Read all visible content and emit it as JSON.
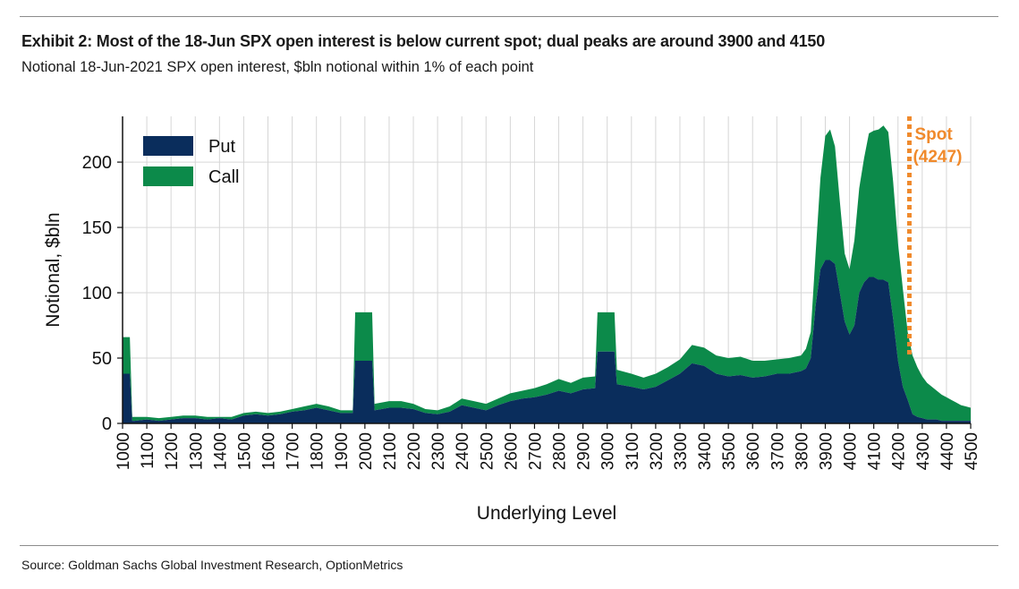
{
  "title": "Exhibit 2: Most of the 18-Jun SPX open interest is below current spot; dual peaks are around 3900 and 4150",
  "subtitle": "Notional 18-Jun-2021 SPX open interest, $bln notional within 1% of each point",
  "source": "Source: Goldman Sachs Global Investment Research, OptionMetrics",
  "chart_data": {
    "type": "area",
    "stacked": true,
    "xlabel": "Underlying Level",
    "ylabel": "Notional, $bln",
    "xlim": [
      1000,
      4500
    ],
    "ylim": [
      0,
      235
    ],
    "yticks": [
      0,
      50,
      100,
      150,
      200
    ],
    "xticks": [
      1000,
      1100,
      1200,
      1300,
      1400,
      1500,
      1600,
      1700,
      1800,
      1900,
      2000,
      2100,
      2200,
      2300,
      2400,
      2500,
      2600,
      2700,
      2800,
      2900,
      3000,
      3100,
      3200,
      3300,
      3400,
      3500,
      3600,
      3700,
      3800,
      3900,
      4000,
      4100,
      4200,
      4300,
      4400,
      4500
    ],
    "xtick_labels": [
      "1000",
      "1100",
      "1200",
      "1300",
      "1400",
      "1500",
      "1600",
      "1700",
      "1800",
      "1900",
      "2000",
      "2100",
      "2200",
      "2300",
      "2400",
      "2500",
      "2600",
      "2700",
      "2800",
      "2900",
      "3000",
      "3100",
      "3200",
      "3300",
      "3400",
      "3500",
      "3600",
      "3700",
      "3800",
      "3900",
      "4000",
      "4100",
      "4200",
      "4300",
      "4400",
      "4500"
    ],
    "grid": true,
    "legend_position": "top-left",
    "x": [
      1000,
      1010,
      1020,
      1030,
      1040,
      1050,
      1100,
      1150,
      1200,
      1250,
      1300,
      1350,
      1400,
      1450,
      1500,
      1550,
      1600,
      1650,
      1700,
      1750,
      1800,
      1850,
      1900,
      1950,
      1960,
      1970,
      2030,
      2040,
      2100,
      2150,
      2200,
      2250,
      2300,
      2350,
      2400,
      2450,
      2500,
      2550,
      2600,
      2650,
      2700,
      2750,
      2800,
      2850,
      2900,
      2950,
      2960,
      2970,
      3030,
      3040,
      3100,
      3150,
      3200,
      3250,
      3300,
      3350,
      3400,
      3450,
      3500,
      3550,
      3600,
      3650,
      3700,
      3750,
      3800,
      3820,
      3840,
      3860,
      3880,
      3900,
      3920,
      3940,
      3960,
      3980,
      4000,
      4020,
      4040,
      4060,
      4080,
      4100,
      4120,
      4140,
      4160,
      4180,
      4200,
      4220,
      4240,
      4260,
      4280,
      4300,
      4320,
      4340,
      4360,
      4380,
      4400,
      4420,
      4440,
      4460,
      4480,
      4500
    ],
    "series": [
      {
        "name": "Put",
        "color": "#0a2d5c",
        "values": [
          38,
          38,
          38,
          38,
          2,
          2,
          3,
          2,
          3,
          4,
          4,
          3,
          4,
          3,
          6,
          7,
          6,
          7,
          9,
          10,
          12,
          10,
          8,
          8,
          48,
          48,
          48,
          10,
          12,
          12,
          11,
          8,
          7,
          9,
          14,
          12,
          10,
          14,
          17,
          19,
          20,
          22,
          25,
          23,
          26,
          27,
          55,
          55,
          55,
          30,
          28,
          26,
          28,
          33,
          38,
          46,
          44,
          38,
          36,
          37,
          35,
          36,
          38,
          38,
          40,
          42,
          50,
          90,
          118,
          125,
          125,
          122,
          100,
          78,
          68,
          75,
          100,
          108,
          112,
          112,
          110,
          110,
          108,
          80,
          48,
          28,
          18,
          7,
          5,
          4,
          3,
          3,
          3,
          2,
          2,
          2,
          2,
          2,
          2,
          2
        ]
      },
      {
        "name": "Call",
        "color": "#0c8a4a",
        "values": [
          28,
          28,
          28,
          28,
          3,
          3,
          2,
          2,
          2,
          2,
          2,
          2,
          1,
          2,
          2,
          2,
          2,
          2,
          2,
          3,
          3,
          3,
          2,
          2,
          37,
          37,
          37,
          5,
          5,
          5,
          4,
          3,
          3,
          4,
          5,
          5,
          5,
          5,
          6,
          6,
          7,
          8,
          9,
          8,
          9,
          9,
          30,
          30,
          30,
          11,
          10,
          9,
          10,
          10,
          11,
          14,
          14,
          14,
          14,
          14,
          13,
          12,
          11,
          12,
          12,
          15,
          20,
          40,
          70,
          95,
          100,
          90,
          70,
          52,
          50,
          65,
          80,
          95,
          110,
          112,
          115,
          118,
          115,
          105,
          90,
          75,
          52,
          45,
          38,
          32,
          28,
          25,
          22,
          20,
          18,
          16,
          14,
          12,
          11,
          10
        ]
      }
    ],
    "spot": {
      "value": 4247,
      "label": "Spot",
      "value_label": "(4247)",
      "color": "#f08a2c"
    }
  }
}
